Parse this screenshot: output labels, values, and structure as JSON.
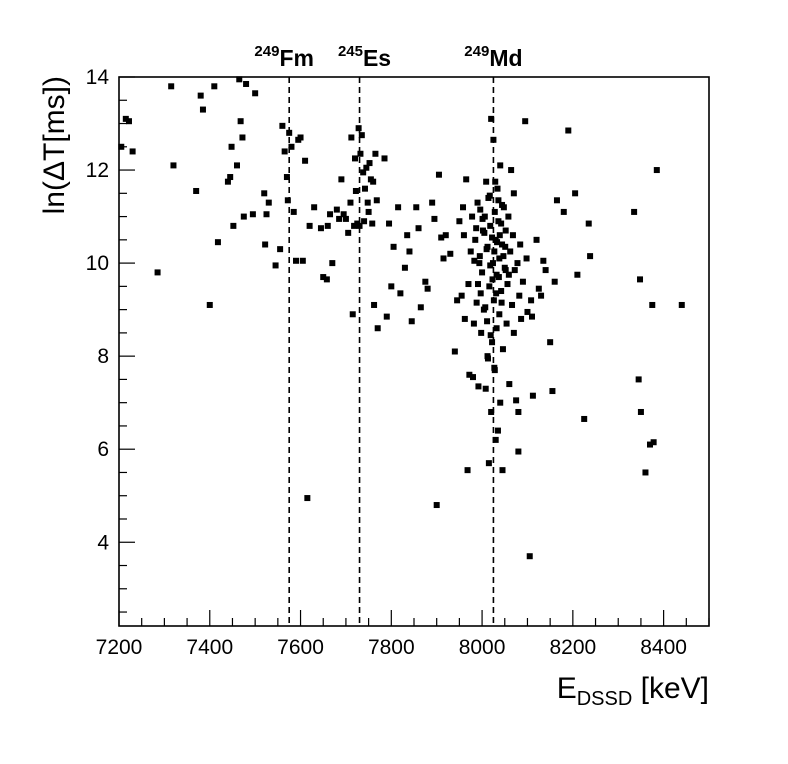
{
  "chart_data": {
    "type": "scatter",
    "title": "",
    "xlabel": {
      "main": "E",
      "sub": "DSSD",
      "unit": " [keV]"
    },
    "ylabel": {
      "pre": "ln(",
      "delta": "Δ",
      "post": "T[ms])"
    },
    "xlim": [
      7200,
      8500
    ],
    "ylim": [
      2.2,
      14
    ],
    "x_ticks": [
      7200,
      7400,
      7600,
      7800,
      8000,
      8200,
      8400
    ],
    "y_ticks": [
      4,
      6,
      8,
      10,
      12,
      14
    ],
    "grid": false,
    "legend": "none",
    "marker_color": "#000000",
    "reference_lines": [
      {
        "x": 7575,
        "mass": "249",
        "symbol": "Fm"
      },
      {
        "x": 7730,
        "mass": "245",
        "symbol": "Es"
      },
      {
        "x": 8025,
        "mass": "249",
        "symbol": "Md"
      }
    ],
    "points": [
      [
        7205,
        12.5
      ],
      [
        7215,
        13.1
      ],
      [
        7222,
        13.05
      ],
      [
        7230,
        12.4
      ],
      [
        7285,
        9.8
      ],
      [
        7315,
        13.8
      ],
      [
        7320,
        12.1
      ],
      [
        7370,
        11.55
      ],
      [
        7380,
        13.6
      ],
      [
        7385,
        13.3
      ],
      [
        7400,
        9.1
      ],
      [
        7410,
        13.8
      ],
      [
        7418,
        10.45
      ],
      [
        7440,
        11.75
      ],
      [
        7445,
        11.85
      ],
      [
        7448,
        12.5
      ],
      [
        7452,
        10.8
      ],
      [
        7460,
        12.1
      ],
      [
        7465,
        13.95
      ],
      [
        7468,
        13.05
      ],
      [
        7472,
        12.7
      ],
      [
        7480,
        13.85
      ],
      [
        7475,
        11.0
      ],
      [
        7495,
        11.05
      ],
      [
        7500,
        13.65
      ],
      [
        7520,
        11.5
      ],
      [
        7522,
        10.4
      ],
      [
        7525,
        11.05
      ],
      [
        7530,
        11.3
      ],
      [
        7545,
        9.95
      ],
      [
        7555,
        10.3
      ],
      [
        7560,
        12.95
      ],
      [
        7565,
        12.4
      ],
      [
        7570,
        11.85
      ],
      [
        7572,
        11.35
      ],
      [
        7575,
        12.8
      ],
      [
        7580,
        12.5
      ],
      [
        7585,
        11.1
      ],
      [
        7590,
        10.05
      ],
      [
        7595,
        12.65
      ],
      [
        7600,
        12.7
      ],
      [
        7605,
        10.05
      ],
      [
        7610,
        12.2
      ],
      [
        7615,
        4.95
      ],
      [
        7620,
        10.8
      ],
      [
        7630,
        11.2
      ],
      [
        7645,
        10.75
      ],
      [
        7650,
        9.7
      ],
      [
        7658,
        9.65
      ],
      [
        7660,
        10.8
      ],
      [
        7665,
        11.05
      ],
      [
        7670,
        10.0
      ],
      [
        7680,
        11.15
      ],
      [
        7685,
        10.95
      ],
      [
        7690,
        11.8
      ],
      [
        7695,
        11.05
      ],
      [
        7700,
        10.95
      ],
      [
        7705,
        10.65
      ],
      [
        7710,
        11.3
      ],
      [
        7712,
        12.7
      ],
      [
        7715,
        8.9
      ],
      [
        7718,
        10.8
      ],
      [
        7720,
        12.25
      ],
      [
        7722,
        11.55
      ],
      [
        7725,
        10.85
      ],
      [
        7728,
        12.9
      ],
      [
        7730,
        10.8
      ],
      [
        7732,
        12.35
      ],
      [
        7735,
        12.75
      ],
      [
        7738,
        11.95
      ],
      [
        7740,
        10.9
      ],
      [
        7742,
        11.6
      ],
      [
        7745,
        12.05
      ],
      [
        7748,
        11.3
      ],
      [
        7750,
        11.1
      ],
      [
        7752,
        12.15
      ],
      [
        7755,
        11.8
      ],
      [
        7758,
        10.85
      ],
      [
        7760,
        11.75
      ],
      [
        7762,
        9.1
      ],
      [
        7765,
        12.35
      ],
      [
        7768,
        11.35
      ],
      [
        7770,
        8.6
      ],
      [
        7785,
        12.25
      ],
      [
        7790,
        8.85
      ],
      [
        7795,
        10.85
      ],
      [
        7800,
        9.5
      ],
      [
        7805,
        10.35
      ],
      [
        7815,
        11.2
      ],
      [
        7820,
        9.35
      ],
      [
        7830,
        9.9
      ],
      [
        7835,
        10.6
      ],
      [
        7840,
        10.25
      ],
      [
        7845,
        8.75
      ],
      [
        7855,
        11.2
      ],
      [
        7860,
        10.75
      ],
      [
        7865,
        9.05
      ],
      [
        7875,
        9.6
      ],
      [
        7880,
        9.45
      ],
      [
        7890,
        11.3
      ],
      [
        7895,
        10.95
      ],
      [
        7900,
        4.8
      ],
      [
        7905,
        11.9
      ],
      [
        7910,
        10.55
      ],
      [
        7915,
        10.1
      ],
      [
        7920,
        10.6
      ],
      [
        7930,
        10.2
      ],
      [
        7940,
        8.1
      ],
      [
        7945,
        9.2
      ],
      [
        7950,
        10.9
      ],
      [
        7955,
        9.3
      ],
      [
        7958,
        11.2
      ],
      [
        7960,
        10.6
      ],
      [
        7962,
        8.8
      ],
      [
        7965,
        11.8
      ],
      [
        7968,
        5.55
      ],
      [
        7970,
        9.55
      ],
      [
        7972,
        7.6
      ],
      [
        7975,
        10.25
      ],
      [
        7978,
        11.0
      ],
      [
        7980,
        7.55
      ],
      [
        7982,
        8.7
      ],
      [
        7985,
        10.5
      ],
      [
        7988,
        9.15
      ],
      [
        7990,
        11.3
      ],
      [
        7992,
        7.35
      ],
      [
        7994,
        10.0
      ],
      [
        7996,
        11.15
      ],
      [
        7998,
        8.5
      ],
      [
        8000,
        9.8
      ],
      [
        8002,
        10.7
      ],
      [
        8004,
        9.0
      ],
      [
        8006,
        11.0
      ],
      [
        8008,
        7.3
      ],
      [
        8010,
        10.3
      ],
      [
        8012,
        8.0
      ],
      [
        8014,
        11.4
      ],
      [
        8015,
        5.7
      ],
      [
        8016,
        9.5
      ],
      [
        8018,
        10.8
      ],
      [
        8020,
        6.8
      ],
      [
        8020,
        13.1
      ],
      [
        8022,
        8.3
      ],
      [
        8024,
        10.0
      ],
      [
        8025,
        12.65
      ],
      [
        8026,
        9.2
      ],
      [
        8028,
        7.7
      ],
      [
        8028,
        11.1
      ],
      [
        8030,
        6.2
      ],
      [
        8030,
        10.5
      ],
      [
        8032,
        8.6
      ],
      [
        8032,
        9.75
      ],
      [
        8034,
        11.6
      ],
      [
        8035,
        6.4
      ],
      [
        8036,
        10.9
      ],
      [
        8038,
        8.9
      ],
      [
        8038,
        10.1
      ],
      [
        8040,
        7.0
      ],
      [
        8040,
        12.1
      ],
      [
        8042,
        9.4
      ],
      [
        8044,
        10.4
      ],
      [
        8045,
        5.55
      ],
      [
        8046,
        8.15
      ],
      [
        8048,
        11.2
      ],
      [
        8050,
        9.9
      ],
      [
        8052,
        10.7
      ],
      [
        8054,
        8.7
      ],
      [
        8056,
        9.55
      ],
      [
        8058,
        11.0
      ],
      [
        8060,
        7.4
      ],
      [
        8062,
        10.25
      ],
      [
        8064,
        12.0
      ],
      [
        8066,
        9.1
      ],
      [
        8068,
        10.6
      ],
      [
        8070,
        8.5
      ],
      [
        8070,
        11.5
      ],
      [
        8072,
        9.85
      ],
      [
        8075,
        7.05
      ],
      [
        8078,
        10.0
      ],
      [
        8080,
        6.8
      ],
      [
        8080,
        5.95
      ],
      [
        8082,
        9.3
      ],
      [
        8084,
        10.4
      ],
      [
        8086,
        8.8
      ],
      [
        8090,
        9.6
      ],
      [
        8095,
        13.05
      ],
      [
        8098,
        10.1
      ],
      [
        8100,
        8.95
      ],
      [
        8105,
        3.7
      ],
      [
        8108,
        9.2
      ],
      [
        8110,
        8.85
      ],
      [
        8112,
        7.15
      ],
      [
        8120,
        10.5
      ],
      [
        8125,
        9.45
      ],
      [
        8130,
        9.3
      ],
      [
        8135,
        10.05
      ],
      [
        8140,
        9.85
      ],
      [
        8150,
        8.3
      ],
      [
        8155,
        7.25
      ],
      [
        8160,
        9.6
      ],
      [
        8165,
        11.35
      ],
      [
        8180,
        11.1
      ],
      [
        8190,
        12.85
      ],
      [
        8205,
        11.5
      ],
      [
        8210,
        9.75
      ],
      [
        8225,
        6.65
      ],
      [
        8235,
        10.85
      ],
      [
        8238,
        10.15
      ],
      [
        8335,
        11.1
      ],
      [
        8345,
        7.5
      ],
      [
        8348,
        9.65
      ],
      [
        8350,
        6.8
      ],
      [
        8360,
        5.5
      ],
      [
        8370,
        6.1
      ],
      [
        8375,
        9.1
      ],
      [
        8378,
        6.15
      ],
      [
        8385,
        12.0
      ],
      [
        8440,
        9.1
      ],
      [
        7995,
        10.15
      ],
      [
        8005,
        10.65
      ],
      [
        8012,
        10.35
      ],
      [
        8018,
        9.95
      ],
      [
        8022,
        10.55
      ],
      [
        8027,
        10.25
      ],
      [
        8033,
        10.45
      ],
      [
        8037,
        9.7
      ],
      [
        8042,
        10.85
      ],
      [
        8047,
        10.15
      ],
      [
        8052,
        9.85
      ],
      [
        8001,
        10.95
      ],
      [
        7997,
        9.35
      ],
      [
        8007,
        9.05
      ],
      [
        8011,
        8.75
      ],
      [
        8019,
        8.45
      ],
      [
        8023,
        9.65
      ],
      [
        8031,
        9.35
      ],
      [
        8039,
        10.6
      ],
      [
        8043,
        9.15
      ],
      [
        8051,
        10.35
      ],
      [
        8059,
        9.75
      ],
      [
        8009,
        11.75
      ],
      [
        8017,
        11.45
      ],
      [
        8029,
        11.75
      ],
      [
        8036,
        11.35
      ],
      [
        8044,
        11.25
      ],
      [
        7987,
        10.75
      ],
      [
        7983,
        10.05
      ],
      [
        7991,
        9.55
      ],
      [
        8013,
        7.95
      ],
      [
        8027,
        7.75
      ]
    ]
  }
}
